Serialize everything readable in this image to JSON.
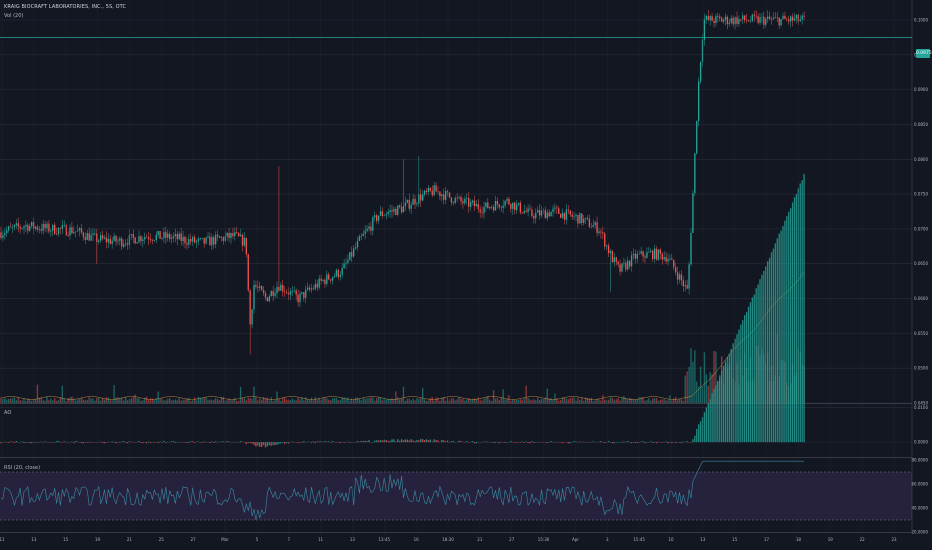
{
  "header": {
    "title": "KRAIG BIOCRAFT LABORATORIES, INC., 5S, OTC",
    "volume_label": "Vol (20)",
    "ao_label": "AO",
    "rsi_label": "RSI (20, close)"
  },
  "current_price_tag": "0.0975",
  "colors": {
    "up": "#26a69a",
    "down": "#ef5350",
    "rsi": "#3b8ea5",
    "rsi_band": "#7e57c2",
    "grid": "#2a2e39"
  },
  "chart_data": [
    {
      "type": "candlestick",
      "title": "KRAIG BIOCRAFT LABORATORIES, INC., 5S, OTC",
      "y_range": [
        0.045,
        0.1
      ],
      "y_ticks": [
        "0.1000",
        "0.0950",
        "0.0900",
        "0.0850",
        "0.0800",
        "0.0750",
        "0.0700",
        "0.0650",
        "0.0600",
        "0.0550",
        "0.0500",
        "0.0450"
      ],
      "x_ticks": [
        "11",
        "13",
        "15",
        "19",
        "21",
        "25",
        "27",
        "Mar",
        "5",
        "7",
        "11",
        "13",
        "13:45",
        "16",
        "18:30",
        "21",
        "27",
        "15:30",
        "Apr",
        "3",
        "15:45",
        "10",
        "13",
        "15",
        "17",
        "18",
        "19",
        "22",
        "23"
      ],
      "last_price": 0.0975,
      "price_path": [
        {
          "t": 0,
          "p": 0.0695
        },
        {
          "t": 0.03,
          "p": 0.0705
        },
        {
          "t": 0.06,
          "p": 0.07
        },
        {
          "t": 0.09,
          "p": 0.0698
        },
        {
          "t": 0.12,
          "p": 0.0685
        },
        {
          "t": 0.15,
          "p": 0.0682
        },
        {
          "t": 0.18,
          "p": 0.069
        },
        {
          "t": 0.21,
          "p": 0.0688
        },
        {
          "t": 0.25,
          "p": 0.068
        },
        {
          "t": 0.29,
          "p": 0.069
        },
        {
          "t": 0.305,
          "p": 0.068
        },
        {
          "t": 0.31,
          "p": 0.056
        },
        {
          "t": 0.315,
          "p": 0.062
        },
        {
          "t": 0.33,
          "p": 0.06
        },
        {
          "t": 0.345,
          "p": 0.062
        },
        {
          "t": 0.37,
          "p": 0.06
        },
        {
          "t": 0.4,
          "p": 0.0625
        },
        {
          "t": 0.425,
          "p": 0.064
        },
        {
          "t": 0.445,
          "p": 0.068
        },
        {
          "t": 0.47,
          "p": 0.072
        },
        {
          "t": 0.5,
          "p": 0.073
        },
        {
          "t": 0.52,
          "p": 0.0745
        },
        {
          "t": 0.54,
          "p": 0.0755
        },
        {
          "t": 0.57,
          "p": 0.074
        },
        {
          "t": 0.6,
          "p": 0.073
        },
        {
          "t": 0.63,
          "p": 0.074
        },
        {
          "t": 0.66,
          "p": 0.072
        },
        {
          "t": 0.69,
          "p": 0.0725
        },
        {
          "t": 0.72,
          "p": 0.0715
        },
        {
          "t": 0.745,
          "p": 0.07
        },
        {
          "t": 0.76,
          "p": 0.066
        },
        {
          "t": 0.77,
          "p": 0.064
        },
        {
          "t": 0.79,
          "p": 0.066
        },
        {
          "t": 0.81,
          "p": 0.0665
        },
        {
          "t": 0.83,
          "p": 0.066
        },
        {
          "t": 0.845,
          "p": 0.063
        },
        {
          "t": 0.855,
          "p": 0.061
        },
        {
          "t": 0.862,
          "p": 0.076
        },
        {
          "t": 0.868,
          "p": 0.09
        },
        {
          "t": 0.875,
          "p": 0.1
        }
      ]
    },
    {
      "type": "bar",
      "title": "AO",
      "y_ticks": [
        "0.0100",
        "0.0000"
      ],
      "y_range": [
        -0.004,
        0.011
      ]
    },
    {
      "type": "line",
      "title": "RSI (20, close)",
      "y_range": [
        20,
        80
      ],
      "y_ticks": [
        "80.0000",
        "60.0000",
        "40.0000",
        "20.0000"
      ],
      "band": [
        30,
        70
      ]
    }
  ]
}
